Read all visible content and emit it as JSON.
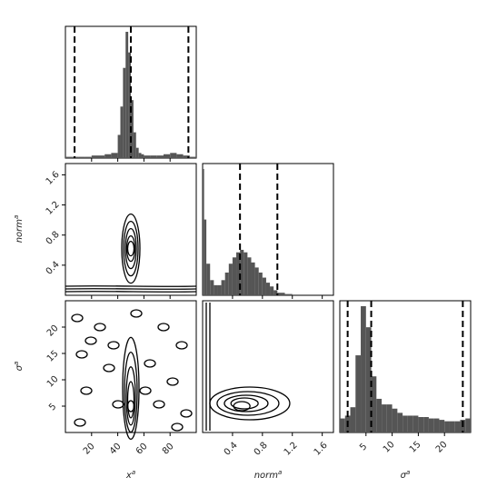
{
  "chart_data": {
    "type": "corner",
    "parameters": [
      {
        "key": "x",
        "label_base": "x",
        "label_sup": "a"
      },
      {
        "key": "norm",
        "label_base": "norm",
        "label_sup": "a"
      },
      {
        "key": "sigma",
        "label_base": "σ",
        "label_sup": "a"
      }
    ],
    "ranges": {
      "x": [
        0,
        100
      ],
      "norm": [
        0.0,
        1.75
      ],
      "sigma": [
        0,
        25
      ]
    },
    "ticks": {
      "x": [
        "20",
        "40",
        "60",
        "80"
      ],
      "norm": [
        "0.4",
        "0.8",
        "1.2",
        "1.6"
      ],
      "sigma": [
        "5",
        "10",
        "15",
        "20"
      ]
    },
    "quantile_lines": {
      "x": [
        7,
        50,
        94
      ],
      "norm": [
        0.5,
        1.0
      ],
      "sigma": [
        1.5,
        6,
        23.5
      ]
    },
    "histograms": {
      "x": {
        "bins": [
          0,
          5,
          10,
          15,
          20,
          25,
          30,
          35,
          40,
          42,
          44,
          46,
          48,
          50,
          52,
          54,
          56,
          58,
          60,
          65,
          70,
          75,
          80,
          85,
          90,
          95
        ],
        "counts": [
          1,
          1,
          1,
          1,
          2,
          2,
          3,
          4,
          18,
          40,
          70,
          98,
          82,
          45,
          20,
          8,
          4,
          3,
          2,
          2,
          2,
          3,
          4,
          3,
          2,
          1
        ]
      },
      "norm": {
        "bins": [
          0.0,
          0.02,
          0.05,
          0.1,
          0.15,
          0.2,
          0.25,
          0.3,
          0.35,
          0.4,
          0.45,
          0.5,
          0.55,
          0.6,
          0.65,
          0.7,
          0.75,
          0.8,
          0.85,
          0.9,
          0.95,
          1.0,
          1.1,
          1.2,
          1.4
        ],
        "counts": [
          100,
          60,
          25,
          12,
          8,
          8,
          12,
          18,
          25,
          30,
          34,
          36,
          34,
          30,
          26,
          22,
          18,
          14,
          10,
          7,
          4,
          2,
          1,
          0,
          0
        ]
      },
      "sigma": {
        "bins": [
          0,
          1,
          2,
          3,
          4,
          5,
          6,
          7,
          8,
          9,
          10,
          11,
          12,
          13,
          14,
          15,
          16,
          17,
          18,
          19,
          20,
          21,
          22,
          23,
          24
        ],
        "counts": [
          10,
          12,
          18,
          55,
          90,
          75,
          40,
          24,
          20,
          20,
          17,
          14,
          12,
          12,
          12,
          11,
          11,
          10,
          10,
          9,
          8,
          8,
          8,
          9,
          10
        ]
      }
    },
    "contour_pairs": [
      {
        "x": "x",
        "y": "norm",
        "center": [
          50,
          0.62
        ]
      },
      {
        "x": "x",
        "y": "sigma",
        "center": [
          50,
          5
        ]
      },
      {
        "x": "norm",
        "y": "sigma",
        "center": [
          0.5,
          5
        ]
      }
    ]
  }
}
